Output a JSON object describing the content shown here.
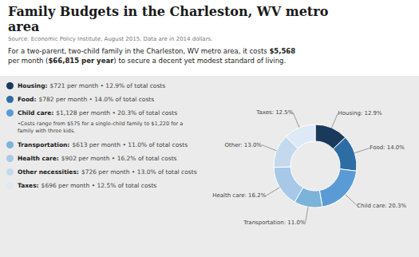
{
  "chart_data": {
    "type": "pie",
    "title": "Family Budgets in the Charleston, WV metro area",
    "subtitle": "Source: Economic Policy Institute, August 2015. Data are in 2014 dollars.",
    "categories": [
      "Housing",
      "Food",
      "Child care",
      "Transportation",
      "Health care",
      "Other",
      "Taxes"
    ],
    "values": [
      12.9,
      14.0,
      20.3,
      11.0,
      16.2,
      13.0,
      12.5
    ],
    "colors": [
      "#1a3a5c",
      "#2e6da4",
      "#5b9bd5",
      "#7bb3d9",
      "#a8c8e8",
      "#c5d9ee",
      "#ddeaf6"
    ],
    "data_labels": true,
    "value_labels": [
      "Housing: 12.9%",
      "Food: 14.0%",
      "Child care: 20.3%",
      "Transportation: 11.0%",
      "Health care: 16.2%",
      "Other: 13.0%",
      "Taxes: 12.5%"
    ],
    "annotations": {
      "intro": [
        [
          "For a two-parent, two-child family in the Charleston, WV metro area, it costs ",
          "$5,568"
        ],
        [
          "per month (",
          "$66,815 per year",
          ") to secure a decent yet modest standard of living."
        ]
      ],
      "items": [
        [
          "Housing:",
          "$721 per month • 12.9% of total costs"
        ],
        [
          "Food:",
          "$782 per month • 14.0% of total costs"
        ],
        [
          "Child care:",
          "$1,128 per month • 20.3% of total costs"
        ],
        [
          "•Costs range from $575 for a single-child family to $1,220 for a family with three kids."
        ],
        [
          "Transportation:",
          "$613 per month • 11.0% of total costs"
        ],
        [
          "Health care:",
          "$902 per month • 16.2% of total costs"
        ],
        [
          "Other necessities:",
          "$726 per month • 13.0% of total costs"
        ],
        [
          "Taxes:",
          "$696 per month • 12.5% of total costs"
        ]
      ]
    }
  }
}
